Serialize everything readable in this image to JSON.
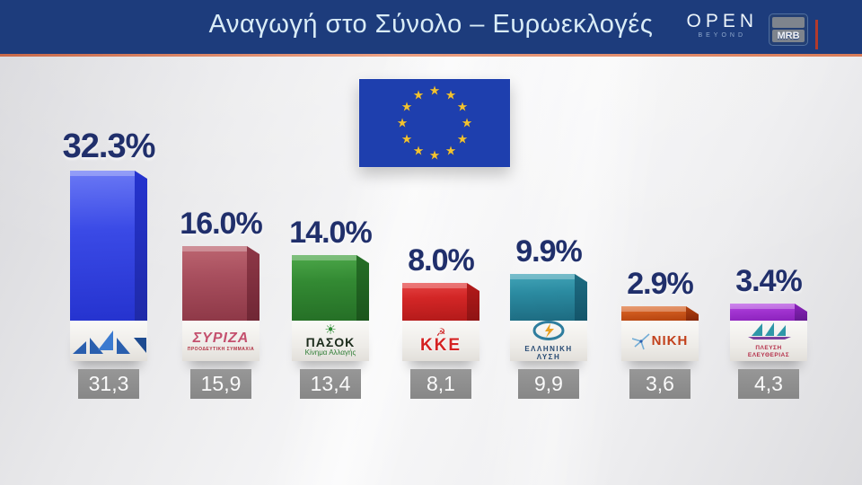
{
  "header": {
    "title": "Αναγωγή στο Σύνολο – Ευρωεκλογές",
    "open_logo": "OPEN",
    "open_sub": "BEYOND",
    "mrb_logo": "MRB",
    "bar_color": "#1d3c7c",
    "underline_color": "#d87b58",
    "title_color": "#d9ecf7"
  },
  "eu_flag": {
    "color": "#1e3fae",
    "star_color": "#f2c230",
    "star_count": 12,
    "star": "★"
  },
  "chart_data": {
    "type": "bar",
    "title": "Αναγωγή στο Σύνολο – Ευρωεκλογές",
    "categories": [
      "ΝΔ",
      "ΣΥΡΙΖΑ",
      "ΠΑΣΟΚ",
      "ΚΚΕ",
      "ΕΛΛΗΝΙΚΗ ΛΥΣΗ",
      "ΝΙΚΗ",
      "ΠΛΕΥΣΗ ΕΛΕΥΘΕΡΙΑΣ"
    ],
    "values": [
      32.3,
      16.0,
      14.0,
      8.0,
      9.9,
      2.9,
      3.4
    ],
    "value_labels": [
      "32.3%",
      "16.0%",
      "14.0%",
      "8.0%",
      "9.9%",
      "2.9%",
      "3.4%"
    ],
    "secondary_labels": [
      "31,3",
      "15,9",
      "13,4",
      "8,1",
      "9,9",
      "3,6",
      "4,3"
    ],
    "bar_colors": [
      "#3a4ae6",
      "#a84f5e",
      "#338a33",
      "#d32626",
      "#2b8ba1",
      "#cf5a1e",
      "#a335d2"
    ],
    "xlabel": "",
    "ylabel": "",
    "ylim": [
      0,
      35
    ],
    "grid": false,
    "legend": "none"
  },
  "parties": [
    {
      "name": "ΝΔ",
      "value": 32.3,
      "pct": "32.3%",
      "box": "31,3",
      "color": "#3a4ae6",
      "color_light": "#6b79f5",
      "color_dark": "#2533cf",
      "color_side": "#1f2aa8"
    },
    {
      "name": "ΣΥΡΙΖΑ",
      "value": 16.0,
      "pct": "16.0%",
      "box": "15,9",
      "color": "#a84f5e",
      "color_light": "#bd6671",
      "color_dark": "#8e3847",
      "color_side": "#702735",
      "logo_text": "ΣΥΡΙΖΑ",
      "logo_sub": "ΠΡΟΟΔΕΥΤΙΚΗ ΣΥΜΜΑΧΙΑ"
    },
    {
      "name": "ΠΑΣΟΚ",
      "value": 14.0,
      "pct": "14.0%",
      "box": "13,4",
      "color": "#338a33",
      "color_light": "#4da84a",
      "color_dark": "#256f26",
      "color_side": "#1b551c",
      "logo_icon": "☀",
      "logo_text": "ΠΑΣΟΚ",
      "logo_sub": "Κίνημα Αλλαγής"
    },
    {
      "name": "ΚΚΕ",
      "value": 8.0,
      "pct": "8.0%",
      "box": "8,1",
      "color": "#d32626",
      "color_light": "#e64545",
      "color_dark": "#b31a1a",
      "color_side": "#8f1414",
      "logo_icon": "☭",
      "logo_text": "ΚΚΕ"
    },
    {
      "name": "ΕΛΛΗΝΙΚΗ ΛΥΣΗ",
      "value": 9.9,
      "pct": "9.9%",
      "box": "9,9",
      "color": "#2b8ba1",
      "color_light": "#43a5b8",
      "color_dark": "#1d6b81",
      "color_side": "#14556a",
      "logo_text": "ΕΛΛΗΝΙΚΗ",
      "logo_sub": "ΛΥΣΗ"
    },
    {
      "name": "ΝΙΚΗ",
      "value": 2.9,
      "pct": "2.9%",
      "box": "3,6",
      "color": "#cf5a1e",
      "color_light": "#e0743a",
      "color_dark": "#b4430f",
      "color_side": "#86280a",
      "logo_text": "ΝΙΚΗ"
    },
    {
      "name": "ΠΛΕΥΣΗ ΕΛΕΥΘΕΡΙΑΣ",
      "value": 3.4,
      "pct": "3.4%",
      "box": "4,3",
      "color": "#a335d2",
      "color_light": "#bb55e6",
      "color_dark": "#8b22bc",
      "color_side": "#661a92",
      "logo_text": "ΠΛΕΥΣΗ",
      "logo_sub": "ΕΛΕΥΘΕΡΙΑΣ"
    }
  ]
}
